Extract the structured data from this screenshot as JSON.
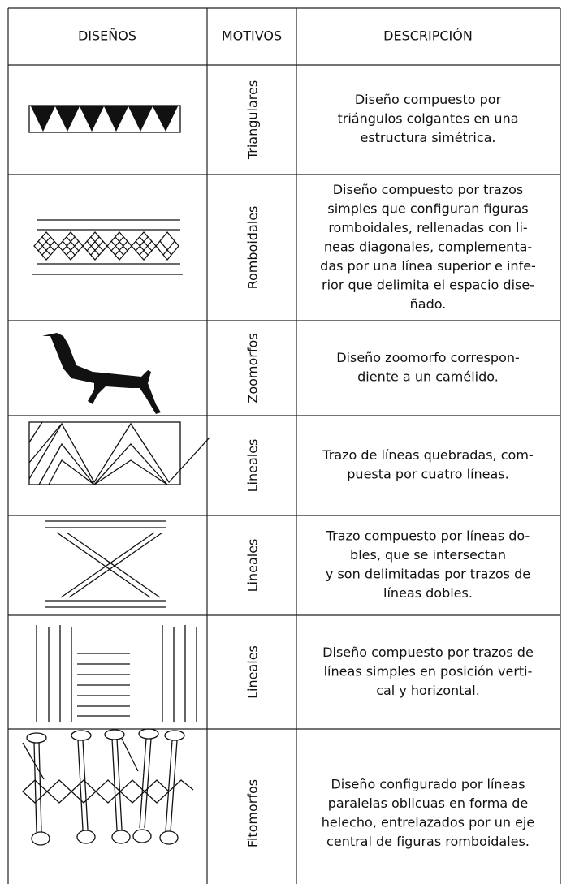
{
  "table": {
    "header": [
      "DISEÑOS",
      "MOTIVOS",
      "DESCRIPCIÓN"
    ],
    "rows": [
      {
        "motivo": "Triangulares",
        "descripcion": [
          "Diseño compuesto por",
          "triángulos colgantes en una",
          "estructura simétrica."
        ]
      },
      {
        "motivo": "Romboidales",
        "descripcion": [
          "Diseño compuesto por trazos",
          "simples que configuran figuras",
          "romboidales, rellenadas con li-",
          "neas diagonales, complementa-",
          "das por una línea superior e infe-",
          "rior que delimita el espacio dise-",
          "ñado."
        ]
      },
      {
        "motivo": "Zoomorfos",
        "descripcion": [
          "Diseño zoomorfo correspon-",
          "diente a un camélido."
        ]
      },
      {
        "motivo": "Lineales",
        "descripcion": [
          "Trazo de líneas quebradas, com-",
          "puesta por cuatro líneas."
        ]
      },
      {
        "motivo": "Lineales",
        "descripcion": [
          "Trazo compuesto por líneas do-",
          "bles, que se intersectan",
          "y son delimitadas por trazos de",
          "líneas dobles."
        ]
      },
      {
        "motivo": "Lineales",
        "descripcion": [
          "Diseño compuesto por trazos de",
          "líneas simples en posición verti-",
          "cal y horizontal."
        ]
      },
      {
        "motivo": "Fitomorfos",
        "descripcion": [
          "Diseño configurado por líneas",
          "paralelas oblicuas en forma de",
          "helecho, entrelazados por un eje",
          "central de figuras romboidales."
        ]
      }
    ]
  }
}
